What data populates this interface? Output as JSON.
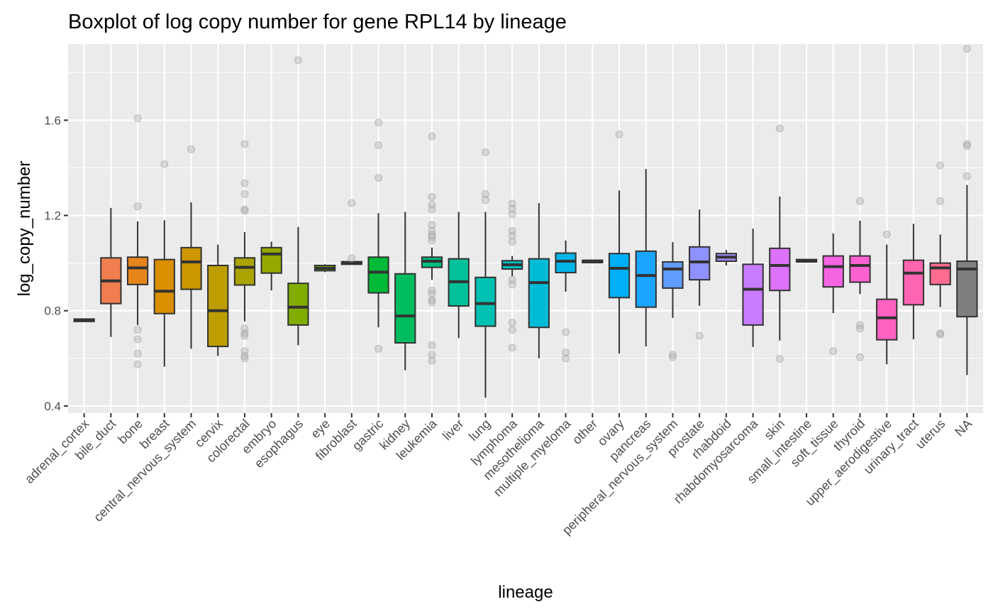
{
  "chart_data": {
    "type": "boxplot",
    "title": "Boxplot of log copy number for gene RPL14 by lineage",
    "xlabel": "lineage",
    "ylabel": "log_copy_number",
    "ylim": [
      0.37,
      1.92
    ],
    "yticks": [
      0.4,
      0.8,
      1.2,
      1.6
    ],
    "ytick_labels": [
      "0.4",
      "0.8",
      "1.2",
      "1.6"
    ],
    "grid": true,
    "legend": "none",
    "panel_color": "#ebebeb",
    "box_stroke": "#333333",
    "outlier_color": "#b3b3b3",
    "categories": [
      {
        "name": "adrenal_cortex",
        "fill": "#F8766D",
        "q1": 0.755,
        "median": 0.76,
        "q3": 0.765,
        "wlo": 0.755,
        "whi": 0.765,
        "outliers": []
      },
      {
        "name": "bile_duct",
        "fill": "#F07E4F",
        "q1": 0.83,
        "median": 0.925,
        "q3": 1.022,
        "wlo": 0.69,
        "whi": 1.232,
        "outliers": []
      },
      {
        "name": "bone",
        "fill": "#E6861A",
        "q1": 0.91,
        "median": 0.98,
        "q3": 1.025,
        "wlo": 0.74,
        "whi": 1.175,
        "outliers": [
          1.608,
          1.238,
          0.72,
          0.68,
          0.62,
          0.575
        ]
      },
      {
        "name": "breast",
        "fill": "#DA8F00",
        "q1": 0.788,
        "median": 0.882,
        "q3": 1.015,
        "wlo": 0.565,
        "whi": 1.18,
        "outliers": [
          1.415
        ]
      },
      {
        "name": "central_nervous_system",
        "fill": "#CC9600",
        "q1": 0.89,
        "median": 1.005,
        "q3": 1.065,
        "wlo": 0.64,
        "whi": 1.255,
        "outliers": [
          1.478
        ]
      },
      {
        "name": "cervix",
        "fill": "#BD9D00",
        "q1": 0.65,
        "median": 0.8,
        "q3": 0.99,
        "wlo": 0.61,
        "whi": 1.078,
        "outliers": []
      },
      {
        "name": "colorectal",
        "fill": "#ABA300",
        "q1": 0.908,
        "median": 0.982,
        "q3": 1.022,
        "wlo": 0.755,
        "whi": 1.13,
        "outliers": [
          1.5,
          1.335,
          1.29,
          1.225,
          1.22,
          0.725,
          0.705,
          0.695,
          0.63,
          0.61,
          0.6
        ]
      },
      {
        "name": "embryo",
        "fill": "#97A900",
        "q1": 0.958,
        "median": 1.038,
        "q3": 1.065,
        "wlo": 0.885,
        "whi": 1.09,
        "outliers": []
      },
      {
        "name": "esophagus",
        "fill": "#81AD00",
        "q1": 0.74,
        "median": 0.815,
        "q3": 0.915,
        "wlo": 0.655,
        "whi": 1.152,
        "outliers": [
          1.852
        ]
      },
      {
        "name": "eye",
        "fill": "#66B100",
        "q1": 0.968,
        "median": 0.978,
        "q3": 0.99,
        "wlo": 0.962,
        "whi": 0.995,
        "outliers": []
      },
      {
        "name": "fibroblast",
        "fill": "#3CB44B",
        "q1": 0.995,
        "median": 1.0,
        "q3": 1.006,
        "wlo": 0.995,
        "whi": 1.006,
        "outliers": [
          1.252,
          1.02
        ]
      },
      {
        "name": "gastric",
        "fill": "#00BA38",
        "q1": 0.875,
        "median": 0.962,
        "q3": 1.025,
        "wlo": 0.73,
        "whi": 1.21,
        "outliers": [
          1.59,
          1.495,
          1.358,
          0.64
        ]
      },
      {
        "name": "kidney",
        "fill": "#00BD5F",
        "q1": 0.665,
        "median": 0.778,
        "q3": 0.955,
        "wlo": 0.55,
        "whi": 1.215,
        "outliers": []
      },
      {
        "name": "leukemia",
        "fill": "#00BF7D",
        "q1": 0.982,
        "median": 1.008,
        "q3": 1.025,
        "wlo": 0.93,
        "whi": 1.065,
        "outliers": [
          1.532,
          1.278,
          1.245,
          1.225,
          1.16,
          1.135,
          1.118,
          1.11,
          1.095,
          0.885,
          0.87,
          0.845,
          0.835,
          0.655,
          0.615,
          0.59
        ]
      },
      {
        "name": "liver",
        "fill": "#00C19A",
        "q1": 0.82,
        "median": 0.922,
        "q3": 1.018,
        "wlo": 0.685,
        "whi": 1.215,
        "outliers": []
      },
      {
        "name": "lung",
        "fill": "#00C0B2",
        "q1": 0.735,
        "median": 0.83,
        "q3": 0.94,
        "wlo": 0.435,
        "whi": 1.215,
        "outliers": [
          1.465,
          1.29,
          1.265
        ]
      },
      {
        "name": "lymphoma",
        "fill": "#00BFC4",
        "q1": 0.975,
        "median": 0.993,
        "q3": 1.01,
        "wlo": 0.945,
        "whi": 1.03,
        "outliers": [
          1.25,
          1.228,
          1.205,
          1.135,
          1.115,
          1.09,
          0.93,
          0.91,
          0.75,
          0.72,
          0.645
        ]
      },
      {
        "name": "mesothelioma",
        "fill": "#00BBD6",
        "q1": 0.73,
        "median": 0.918,
        "q3": 1.018,
        "wlo": 0.6,
        "whi": 1.252,
        "outliers": []
      },
      {
        "name": "multiple_myeloma",
        "fill": "#00B5E8",
        "q1": 0.96,
        "median": 1.008,
        "q3": 1.042,
        "wlo": 0.88,
        "whi": 1.095,
        "outliers": [
          0.71,
          0.625,
          0.6
        ]
      },
      {
        "name": "other",
        "fill": "#00A9FF",
        "q1": 1.002,
        "median": 1.007,
        "q3": 1.012,
        "wlo": 1.002,
        "whi": 1.012,
        "outliers": []
      },
      {
        "name": "ovary",
        "fill": "#00B0F6",
        "q1": 0.855,
        "median": 0.978,
        "q3": 1.04,
        "wlo": 0.62,
        "whi": 1.305,
        "outliers": [
          1.54
        ]
      },
      {
        "name": "pancreas",
        "fill": "#1AA6FF",
        "q1": 0.815,
        "median": 0.948,
        "q3": 1.05,
        "wlo": 0.65,
        "whi": 1.395,
        "outliers": []
      },
      {
        "name": "peripheral_nervous_system",
        "fill": "#619CFF",
        "q1": 0.895,
        "median": 0.975,
        "q3": 1.005,
        "wlo": 0.77,
        "whi": 1.088,
        "outliers": [
          0.615,
          0.605
        ]
      },
      {
        "name": "prostate",
        "fill": "#8F91FF",
        "q1": 0.93,
        "median": 1.005,
        "q3": 1.068,
        "wlo": 0.82,
        "whi": 1.225,
        "outliers": [
          0.695
        ]
      },
      {
        "name": "rhabdoid",
        "fill": "#A58AFF",
        "q1": 1.008,
        "median": 1.025,
        "q3": 1.04,
        "wlo": 0.99,
        "whi": 1.055,
        "outliers": []
      },
      {
        "name": "rhabdomyosarcoma",
        "fill": "#C77CFF",
        "q1": 0.74,
        "median": 0.89,
        "q3": 0.995,
        "wlo": 0.648,
        "whi": 1.145,
        "outliers": []
      },
      {
        "name": "skin",
        "fill": "#DC71FA",
        "q1": 0.885,
        "median": 0.99,
        "q3": 1.062,
        "wlo": 0.675,
        "whi": 1.28,
        "outliers": [
          1.565,
          0.598
        ]
      },
      {
        "name": "small_intestine",
        "fill": "#EB68ED",
        "q1": 1.005,
        "median": 1.01,
        "q3": 1.015,
        "wlo": 1.005,
        "whi": 1.015,
        "outliers": []
      },
      {
        "name": "soft_tissue",
        "fill": "#F564E3",
        "q1": 0.9,
        "median": 0.985,
        "q3": 1.03,
        "wlo": 0.79,
        "whi": 1.125,
        "outliers": [
          0.63
        ]
      },
      {
        "name": "thyroid",
        "fill": "#FD61D1",
        "q1": 0.92,
        "median": 0.99,
        "q3": 1.03,
        "wlo": 0.87,
        "whi": 1.178,
        "outliers": [
          1.26,
          0.74,
          0.725,
          0.605
        ]
      },
      {
        "name": "upper_aerodigestive",
        "fill": "#FF61C3",
        "q1": 0.678,
        "median": 0.77,
        "q3": 0.848,
        "wlo": 0.575,
        "whi": 1.078,
        "outliers": [
          1.12
        ]
      },
      {
        "name": "urinary_tract",
        "fill": "#FF64B0",
        "q1": 0.825,
        "median": 0.958,
        "q3": 1.012,
        "wlo": 0.68,
        "whi": 1.165,
        "outliers": []
      },
      {
        "name": "uterus",
        "fill": "#FF6C91",
        "q1": 0.91,
        "median": 0.98,
        "q3": 1.0,
        "wlo": 0.815,
        "whi": 1.12,
        "outliers": [
          1.41,
          1.26,
          0.705,
          0.7
        ]
      },
      {
        "name": "NA",
        "fill": "#7F7F7F",
        "q1": 0.775,
        "median": 0.975,
        "q3": 1.008,
        "wlo": 0.53,
        "whi": 1.328,
        "outliers": [
          1.9,
          1.5,
          1.492,
          1.365
        ]
      }
    ]
  }
}
